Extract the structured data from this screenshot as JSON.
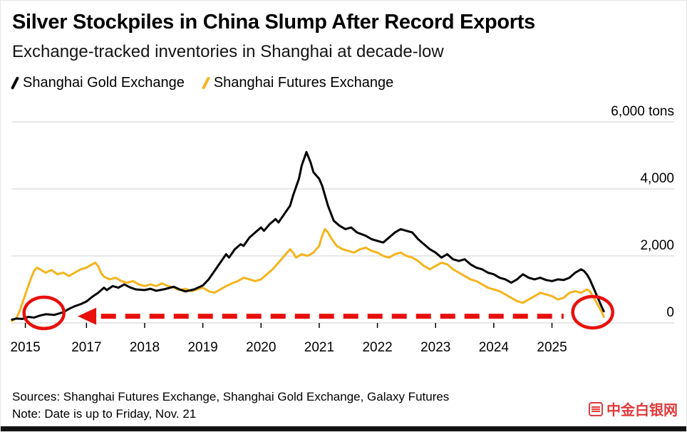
{
  "chart_data": {
    "type": "line",
    "title": "Silver Stockpiles in China Slump After Record Exports",
    "subtitle": "Exchange-tracked inventories in Shanghai at decade-low",
    "unit": "tons",
    "ylim": [
      0,
      6000
    ],
    "yticks": [
      0,
      2000,
      4000,
      6000
    ],
    "ytick_labels": [
      "0",
      "2,000",
      "4,000",
      "6,000 tons"
    ],
    "x_domain": [
      2015.71,
      2027.1
    ],
    "xticks": [
      {
        "label": "2015",
        "pos": 2015.95
      },
      {
        "label": "2017",
        "pos": 2017
      },
      {
        "label": "2018",
        "pos": 2018
      },
      {
        "label": "2019",
        "pos": 2019
      },
      {
        "label": "2020",
        "pos": 2020
      },
      {
        "label": "2021",
        "pos": 2021
      },
      {
        "label": "2022",
        "pos": 2022
      },
      {
        "label": "2023",
        "pos": 2023
      },
      {
        "label": "2024",
        "pos": 2024
      },
      {
        "label": "2025",
        "pos": 2025
      }
    ],
    "grid_color": "#cfcfcf",
    "series": [
      {
        "name": "Shanghai Gold Exchange",
        "color": "#000000",
        "points": [
          [
            2015.72,
            100
          ],
          [
            2015.8,
            130
          ],
          [
            2015.9,
            120
          ],
          [
            2016.0,
            180
          ],
          [
            2016.1,
            160
          ],
          [
            2016.2,
            220
          ],
          [
            2016.3,
            260
          ],
          [
            2016.45,
            240
          ],
          [
            2016.6,
            320
          ],
          [
            2016.7,
            420
          ],
          [
            2016.8,
            500
          ],
          [
            2016.9,
            560
          ],
          [
            2017.0,
            640
          ],
          [
            2017.1,
            780
          ],
          [
            2017.2,
            900
          ],
          [
            2017.3,
            1050
          ],
          [
            2017.35,
            980
          ],
          [
            2017.45,
            1100
          ],
          [
            2017.55,
            1050
          ],
          [
            2017.65,
            1150
          ],
          [
            2017.75,
            1060
          ],
          [
            2017.85,
            1000
          ],
          [
            2018.0,
            980
          ],
          [
            2018.1,
            1020
          ],
          [
            2018.2,
            960
          ],
          [
            2018.35,
            1010
          ],
          [
            2018.5,
            1080
          ],
          [
            2018.6,
            1000
          ],
          [
            2018.7,
            940
          ],
          [
            2018.85,
            1000
          ],
          [
            2019.0,
            1120
          ],
          [
            2019.1,
            1300
          ],
          [
            2019.2,
            1550
          ],
          [
            2019.3,
            1800
          ],
          [
            2019.4,
            2050
          ],
          [
            2019.45,
            1950
          ],
          [
            2019.55,
            2200
          ],
          [
            2019.65,
            2350
          ],
          [
            2019.7,
            2300
          ],
          [
            2019.8,
            2550
          ],
          [
            2019.9,
            2700
          ],
          [
            2020.0,
            2850
          ],
          [
            2020.05,
            2750
          ],
          [
            2020.15,
            2950
          ],
          [
            2020.25,
            3100
          ],
          [
            2020.3,
            3000
          ],
          [
            2020.4,
            3250
          ],
          [
            2020.5,
            3500
          ],
          [
            2020.55,
            3800
          ],
          [
            2020.65,
            4300
          ],
          [
            2020.7,
            4700
          ],
          [
            2020.78,
            5100
          ],
          [
            2020.85,
            4800
          ],
          [
            2020.9,
            4500
          ],
          [
            2021.0,
            4300
          ],
          [
            2021.05,
            4100
          ],
          [
            2021.1,
            3800
          ],
          [
            2021.15,
            3500
          ],
          [
            2021.25,
            3050
          ],
          [
            2021.35,
            2900
          ],
          [
            2021.45,
            2800
          ],
          [
            2021.55,
            2850
          ],
          [
            2021.65,
            2700
          ],
          [
            2021.8,
            2600
          ],
          [
            2021.9,
            2500
          ],
          [
            2022.0,
            2450
          ],
          [
            2022.1,
            2400
          ],
          [
            2022.2,
            2550
          ],
          [
            2022.3,
            2700
          ],
          [
            2022.4,
            2800
          ],
          [
            2022.5,
            2750
          ],
          [
            2022.6,
            2700
          ],
          [
            2022.7,
            2500
          ],
          [
            2022.8,
            2350
          ],
          [
            2022.9,
            2200
          ],
          [
            2023.0,
            2100
          ],
          [
            2023.1,
            1950
          ],
          [
            2023.2,
            2050
          ],
          [
            2023.3,
            1900
          ],
          [
            2023.4,
            1850
          ],
          [
            2023.5,
            1900
          ],
          [
            2023.6,
            1750
          ],
          [
            2023.7,
            1650
          ],
          [
            2023.8,
            1600
          ],
          [
            2023.9,
            1500
          ],
          [
            2024.0,
            1450
          ],
          [
            2024.1,
            1350
          ],
          [
            2024.2,
            1300
          ],
          [
            2024.3,
            1200
          ],
          [
            2024.4,
            1300
          ],
          [
            2024.5,
            1450
          ],
          [
            2024.6,
            1350
          ],
          [
            2024.7,
            1300
          ],
          [
            2024.8,
            1350
          ],
          [
            2024.9,
            1280
          ],
          [
            2025.0,
            1250
          ],
          [
            2025.1,
            1300
          ],
          [
            2025.2,
            1280
          ],
          [
            2025.3,
            1350
          ],
          [
            2025.4,
            1500
          ],
          [
            2025.5,
            1600
          ],
          [
            2025.55,
            1550
          ],
          [
            2025.6,
            1450
          ],
          [
            2025.65,
            1300
          ],
          [
            2025.7,
            1100
          ],
          [
            2025.75,
            900
          ],
          [
            2025.8,
            700
          ],
          [
            2025.85,
            500
          ],
          [
            2025.89,
            350
          ]
        ]
      },
      {
        "name": "Shanghai Futures Exchange",
        "color": "#F5B41E",
        "points": [
          [
            2015.72,
            60
          ],
          [
            2015.8,
            150
          ],
          [
            2015.85,
            350
          ],
          [
            2015.9,
            600
          ],
          [
            2015.95,
            850
          ],
          [
            2016.0,
            1100
          ],
          [
            2016.05,
            1350
          ],
          [
            2016.1,
            1550
          ],
          [
            2016.15,
            1650
          ],
          [
            2016.2,
            1600
          ],
          [
            2016.3,
            1500
          ],
          [
            2016.4,
            1580
          ],
          [
            2016.5,
            1450
          ],
          [
            2016.6,
            1500
          ],
          [
            2016.7,
            1400
          ],
          [
            2016.8,
            1500
          ],
          [
            2016.9,
            1600
          ],
          [
            2017.0,
            1650
          ],
          [
            2017.1,
            1750
          ],
          [
            2017.15,
            1800
          ],
          [
            2017.2,
            1700
          ],
          [
            2017.25,
            1500
          ],
          [
            2017.3,
            1380
          ],
          [
            2017.4,
            1300
          ],
          [
            2017.5,
            1350
          ],
          [
            2017.6,
            1250
          ],
          [
            2017.7,
            1200
          ],
          [
            2017.8,
            1250
          ],
          [
            2017.9,
            1150
          ],
          [
            2018.0,
            1100
          ],
          [
            2018.1,
            1150
          ],
          [
            2018.2,
            1100
          ],
          [
            2018.3,
            1180
          ],
          [
            2018.4,
            1100
          ],
          [
            2018.5,
            1050
          ],
          [
            2018.6,
            980
          ],
          [
            2018.7,
            1020
          ],
          [
            2018.8,
            950
          ],
          [
            2018.9,
            1000
          ],
          [
            2019.0,
            1050
          ],
          [
            2019.1,
            950
          ],
          [
            2019.2,
            900
          ],
          [
            2019.3,
            1000
          ],
          [
            2019.4,
            1100
          ],
          [
            2019.5,
            1180
          ],
          [
            2019.6,
            1250
          ],
          [
            2019.7,
            1350
          ],
          [
            2019.8,
            1300
          ],
          [
            2019.9,
            1250
          ],
          [
            2020.0,
            1300
          ],
          [
            2020.1,
            1450
          ],
          [
            2020.2,
            1600
          ],
          [
            2020.3,
            1800
          ],
          [
            2020.4,
            2000
          ],
          [
            2020.5,
            2200
          ],
          [
            2020.55,
            2100
          ],
          [
            2020.6,
            1950
          ],
          [
            2020.7,
            2050
          ],
          [
            2020.8,
            2000
          ],
          [
            2020.9,
            2100
          ],
          [
            2021.0,
            2300
          ],
          [
            2021.05,
            2600
          ],
          [
            2021.1,
            2800
          ],
          [
            2021.15,
            2700
          ],
          [
            2021.2,
            2550
          ],
          [
            2021.3,
            2300
          ],
          [
            2021.4,
            2200
          ],
          [
            2021.5,
            2150
          ],
          [
            2021.6,
            2100
          ],
          [
            2021.7,
            2200
          ],
          [
            2021.8,
            2250
          ],
          [
            2021.9,
            2150
          ],
          [
            2022.0,
            2100
          ],
          [
            2022.1,
            2000
          ],
          [
            2022.2,
            1950
          ],
          [
            2022.3,
            2050
          ],
          [
            2022.4,
            2100
          ],
          [
            2022.5,
            2000
          ],
          [
            2022.6,
            1950
          ],
          [
            2022.7,
            1850
          ],
          [
            2022.8,
            1700
          ],
          [
            2022.9,
            1600
          ],
          [
            2023.0,
            1700
          ],
          [
            2023.1,
            1800
          ],
          [
            2023.2,
            1750
          ],
          [
            2023.3,
            1600
          ],
          [
            2023.4,
            1500
          ],
          [
            2023.5,
            1400
          ],
          [
            2023.6,
            1300
          ],
          [
            2023.7,
            1250
          ],
          [
            2023.8,
            1150
          ],
          [
            2023.9,
            1050
          ],
          [
            2024.0,
            1000
          ],
          [
            2024.1,
            950
          ],
          [
            2024.2,
            850
          ],
          [
            2024.3,
            750
          ],
          [
            2024.4,
            650
          ],
          [
            2024.5,
            600
          ],
          [
            2024.6,
            700
          ],
          [
            2024.7,
            800
          ],
          [
            2024.8,
            900
          ],
          [
            2024.9,
            850
          ],
          [
            2025.0,
            800
          ],
          [
            2025.1,
            700
          ],
          [
            2025.2,
            750
          ],
          [
            2025.3,
            900
          ],
          [
            2025.4,
            950
          ],
          [
            2025.5,
            900
          ],
          [
            2025.6,
            1000
          ],
          [
            2025.65,
            950
          ],
          [
            2025.7,
            800
          ],
          [
            2025.75,
            650
          ],
          [
            2025.8,
            500
          ],
          [
            2025.85,
            350
          ],
          [
            2025.89,
            180
          ]
        ]
      }
    ],
    "annotation": {
      "color": "#E8100C",
      "dashed_line": {
        "value": 200,
        "from_year": 2017.25,
        "to_year": 2025.2
      },
      "arrow": {
        "tip_year": 2016.85,
        "value": 200,
        "direction": "left"
      },
      "circles": [
        {
          "year": 2016.27,
          "value": 300
        },
        {
          "year": 2025.7,
          "value": 320
        }
      ]
    }
  },
  "footer": {
    "sources": "Sources: Shanghai Futures Exchange, Shanghai Gold Exchange, Galaxy Futures",
    "note": "Note: Date is up to Friday, Nov. 21"
  },
  "watermark": {
    "text": "中金白银网",
    "color": "#df2b2b"
  }
}
